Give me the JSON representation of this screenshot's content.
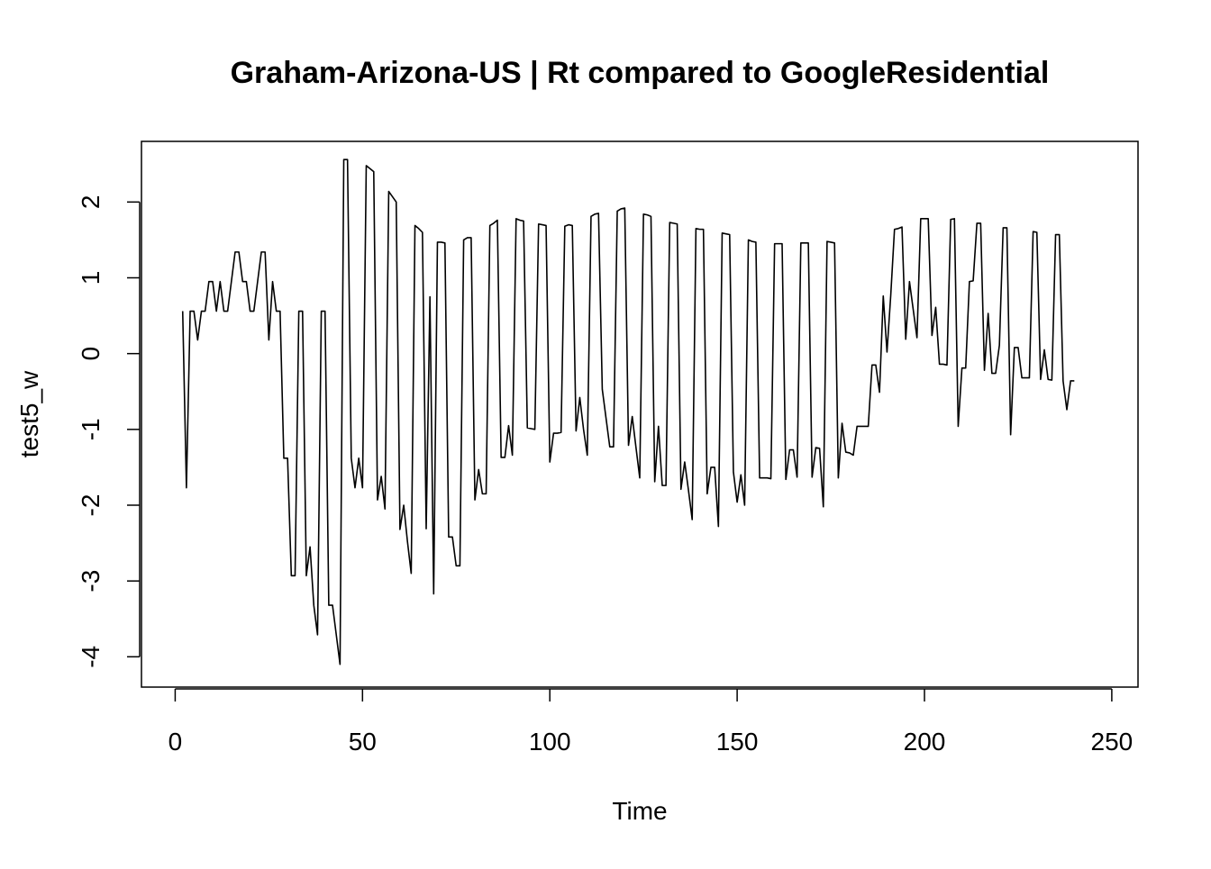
{
  "chart_data": {
    "type": "line",
    "title": "Graham-Arizona-US | Rt compared to GoogleResidential",
    "xlabel": "Time",
    "ylabel": "test5_w",
    "xlim": [
      -9,
      257
    ],
    "ylim": [
      -4.4,
      2.8
    ],
    "x_ticks": [
      0,
      50,
      100,
      150,
      200,
      250
    ],
    "y_ticks": [
      -4,
      -3,
      -2,
      -1,
      0,
      1,
      2
    ],
    "grid": false,
    "series": [
      {
        "x_start": 2,
        "values": [
          0.56,
          -1.77,
          0.56,
          0.56,
          0.18,
          0.56,
          0.56,
          0.95,
          0.95,
          0.56,
          0.95,
          0.56,
          0.56,
          0.95,
          1.34,
          1.34,
          0.95,
          0.95,
          0.56,
          0.56,
          0.95,
          1.34,
          1.34,
          0.18,
          0.95,
          0.56,
          0.56,
          -1.38,
          -1.38,
          -2.93,
          -2.93,
          0.56,
          0.56,
          -2.93,
          -2.55,
          -3.32,
          -3.71,
          0.56,
          0.56,
          -3.32,
          -3.32,
          -3.71,
          -4.1,
          2.56,
          2.56,
          -1.38,
          -1.77,
          -1.38,
          -1.77,
          2.48,
          2.44,
          2.4,
          -1.93,
          -1.62,
          -2.05,
          2.14,
          2.07,
          2.0,
          -2.32,
          -2.0,
          -2.48,
          -2.9,
          1.69,
          1.65,
          1.6,
          -2.31,
          0.75,
          -3.17,
          1.47,
          1.47,
          1.46,
          -2.42,
          -2.42,
          -2.8,
          -2.8,
          1.5,
          1.53,
          1.53,
          -1.93,
          -1.53,
          -1.85,
          -1.85,
          1.69,
          1.72,
          1.76,
          -1.37,
          -1.37,
          -0.95,
          -1.34,
          1.78,
          1.76,
          1.75,
          -0.98,
          -0.99,
          -1.0,
          1.71,
          1.7,
          1.69,
          -1.43,
          -1.05,
          -1.05,
          -1.04,
          1.68,
          1.7,
          1.69,
          -1.02,
          -0.58,
          -1.0,
          -1.34,
          1.81,
          1.84,
          1.85,
          -0.47,
          -0.85,
          -1.23,
          -1.23,
          1.88,
          1.91,
          1.92,
          -1.21,
          -0.83,
          -1.24,
          -1.64,
          1.84,
          1.83,
          1.81,
          -1.69,
          -0.96,
          -1.74,
          -1.74,
          1.73,
          1.72,
          1.71,
          -1.79,
          -1.43,
          -1.8,
          -2.19,
          1.65,
          1.64,
          1.64,
          -1.85,
          -1.5,
          -1.5,
          -2.28,
          1.59,
          1.58,
          1.57,
          -1.56,
          -1.96,
          -1.6,
          -2.0,
          1.5,
          1.48,
          1.47,
          -1.64,
          -1.64,
          -1.64,
          -1.65,
          1.45,
          1.45,
          1.45,
          -1.66,
          -1.27,
          -1.27,
          -1.63,
          1.46,
          1.46,
          1.46,
          -1.63,
          -1.24,
          -1.25,
          -2.02,
          1.48,
          1.47,
          1.46,
          -1.64,
          -0.92,
          -1.3,
          -1.31,
          -1.34,
          -0.96,
          -0.96,
          -0.96,
          -0.96,
          -0.15,
          -0.15,
          -0.51,
          0.76,
          0.02,
          0.77,
          1.64,
          1.65,
          1.67,
          0.19,
          0.95,
          0.58,
          0.21,
          1.78,
          1.78,
          1.78,
          0.24,
          0.61,
          -0.14,
          -0.14,
          -0.15,
          1.77,
          1.78,
          -0.96,
          -0.19,
          -0.19,
          0.95,
          0.96,
          1.72,
          1.72,
          -0.22,
          0.53,
          -0.26,
          -0.26,
          0.11,
          1.66,
          1.66,
          -1.07,
          0.08,
          0.08,
          -0.32,
          -0.32,
          -0.32,
          1.61,
          1.6,
          -0.34,
          0.05,
          -0.34,
          -0.35,
          1.57,
          1.57,
          -0.36,
          -0.74,
          -0.36,
          -0.36
        ]
      }
    ]
  }
}
